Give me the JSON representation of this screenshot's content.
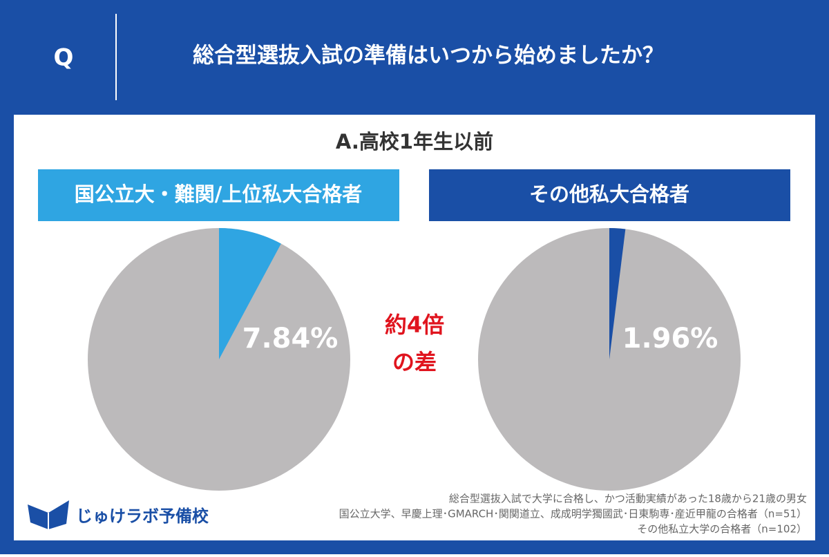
{
  "header": {
    "mark": "Q",
    "question": "総合型選抜入試の準備はいつから始めましたか？"
  },
  "answer": "A.高校1年生以前",
  "chart_data": [
    {
      "type": "pie",
      "title": "国公立大・難関/上位私大合格者",
      "values": [
        7.84
      ],
      "value_labels": [
        "7.84%"
      ],
      "color": "#2fa5e2"
    },
    {
      "type": "pie",
      "title": "その他私大合格者",
      "values": [
        1.96
      ],
      "value_labels": [
        "1.96%"
      ],
      "color": "#1a4fa6"
    }
  ],
  "annotation": [
    "約4倍",
    "の差"
  ],
  "footnotes": [
    "総合型選抜入試で大学に合格し、かつ活動実績があった18歳から21歳の男女",
    "国公立大学、早慶上理･GMARCH･関関道立、成成明学獨國武･日東駒専･産近甲龍の合格者（n=51）",
    "その他私立大学の合格者（n=102）"
  ],
  "logo": "じゅけラボ予備校"
}
